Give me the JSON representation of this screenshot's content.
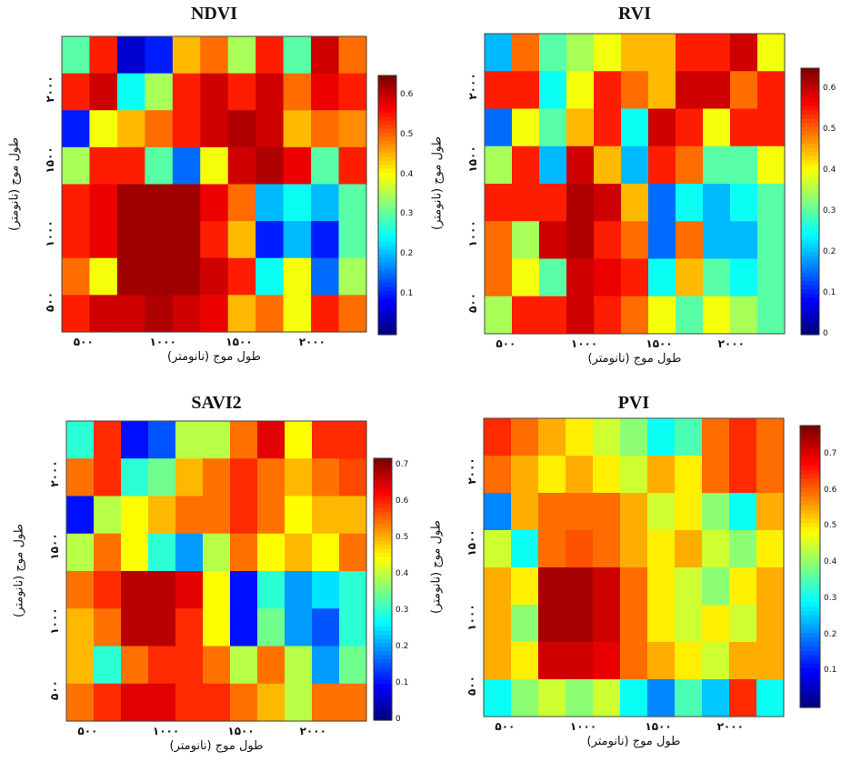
{
  "chart_data": [
    {
      "type": "heatmap",
      "title": "NDVI",
      "xlabel": "طول موج (نانومتر)",
      "ylabel": "طول موج (نانومتر)",
      "x_ticks": [
        "۵۰۰",
        "۱۰۰۰",
        "۱۵۰۰",
        "۲۰۰۰"
      ],
      "y_ticks": [
        "۵۰۰",
        "۱۰۰۰",
        "۱۵۰۰",
        "۲۰۰۰"
      ],
      "colorbar": {
        "min": 0,
        "max": 0.65,
        "ticks": [
          "0.1",
          "0.2",
          "0.3",
          "0.4",
          "0.5",
          "0.6"
        ]
      },
      "matrix": [
        [
          0.3,
          0.55,
          0.05,
          0.1,
          0.45,
          0.5,
          0.35,
          0.55,
          0.3,
          0.6,
          0.5
        ],
        [
          0.55,
          0.6,
          0.25,
          0.35,
          0.55,
          0.6,
          0.55,
          0.6,
          0.5,
          0.58,
          0.55
        ],
        [
          0.1,
          0.4,
          0.45,
          0.5,
          0.55,
          0.6,
          0.62,
          0.6,
          0.45,
          0.5,
          0.48
        ],
        [
          0.35,
          0.55,
          0.55,
          0.3,
          0.15,
          0.4,
          0.6,
          0.62,
          0.58,
          0.3,
          0.55
        ],
        [
          0.55,
          0.58,
          0.63,
          0.63,
          0.63,
          0.58,
          0.5,
          0.2,
          0.25,
          0.2,
          0.3
        ],
        [
          0.55,
          0.58,
          0.63,
          0.63,
          0.63,
          0.55,
          0.45,
          0.1,
          0.2,
          0.1,
          0.3
        ],
        [
          0.5,
          0.4,
          0.63,
          0.63,
          0.63,
          0.6,
          0.55,
          0.25,
          0.4,
          0.15,
          0.35
        ],
        [
          0.55,
          0.6,
          0.6,
          0.62,
          0.6,
          0.58,
          0.45,
          0.5,
          0.4,
          0.55,
          0.5
        ]
      ]
    },
    {
      "type": "heatmap",
      "title": "RVI",
      "xlabel": "طول موج (نانومتر)",
      "ylabel": "طول موج (نانومتر)",
      "x_ticks": [
        "۵۰۰",
        "۱۰۰۰",
        "۱۵۰۰",
        "۲۰۰۰"
      ],
      "y_ticks": [
        "۵۰۰",
        "۱۰۰۰",
        "۱۵۰۰",
        "۲۰۰۰"
      ],
      "colorbar": {
        "min": 0,
        "max": 0.65,
        "ticks": [
          "0",
          "0.1",
          "0.2",
          "0.3",
          "0.4",
          "0.5",
          "0.6"
        ]
      },
      "matrix": [
        [
          0.2,
          0.5,
          0.3,
          0.35,
          0.4,
          0.45,
          0.45,
          0.55,
          0.55,
          0.6,
          0.4
        ],
        [
          0.55,
          0.55,
          0.25,
          0.4,
          0.55,
          0.5,
          0.45,
          0.6,
          0.6,
          0.5,
          0.55
        ],
        [
          0.15,
          0.4,
          0.3,
          0.45,
          0.55,
          0.25,
          0.6,
          0.55,
          0.4,
          0.55,
          0.55
        ],
        [
          0.35,
          0.55,
          0.2,
          0.6,
          0.45,
          0.2,
          0.55,
          0.5,
          0.3,
          0.3,
          0.4
        ],
        [
          0.55,
          0.55,
          0.55,
          0.62,
          0.6,
          0.45,
          0.15,
          0.25,
          0.2,
          0.25,
          0.3
        ],
        [
          0.5,
          0.35,
          0.6,
          0.62,
          0.55,
          0.5,
          0.15,
          0.5,
          0.2,
          0.2,
          0.3
        ],
        [
          0.5,
          0.4,
          0.3,
          0.6,
          0.58,
          0.55,
          0.25,
          0.45,
          0.3,
          0.25,
          0.3
        ],
        [
          0.35,
          0.55,
          0.55,
          0.6,
          0.55,
          0.5,
          0.4,
          0.3,
          0.4,
          0.35,
          0.3
        ]
      ]
    },
    {
      "type": "heatmap",
      "title": "SAVI2",
      "xlabel": "طول موج (نانومتر)",
      "ylabel": "طول موج (نانومتر)",
      "x_ticks": [
        "۵۰۰",
        "۱۰۰۰",
        "۱۵۰۰",
        "۲۰۰۰"
      ],
      "y_ticks": [
        "۵۰۰",
        "۱۰۰۰",
        "۱۵۰۰",
        "۲۰۰۰"
      ],
      "colorbar": {
        "min": 0,
        "max": 0.72,
        "ticks": [
          "0",
          "0.1",
          "0.2",
          "0.3",
          "0.4",
          "0.5",
          "0.6",
          "0.7"
        ]
      },
      "matrix": [
        [
          0.3,
          0.6,
          0.1,
          0.15,
          0.4,
          0.4,
          0.55,
          0.65,
          0.45,
          0.6,
          0.6
        ],
        [
          0.55,
          0.6,
          0.3,
          0.35,
          0.5,
          0.55,
          0.6,
          0.55,
          0.5,
          0.55,
          0.58
        ],
        [
          0.1,
          0.4,
          0.45,
          0.5,
          0.55,
          0.55,
          0.6,
          0.55,
          0.45,
          0.5,
          0.5
        ],
        [
          0.4,
          0.55,
          0.45,
          0.3,
          0.2,
          0.4,
          0.55,
          0.45,
          0.5,
          0.45,
          0.55
        ],
        [
          0.55,
          0.6,
          0.68,
          0.68,
          0.65,
          0.45,
          0.1,
          0.3,
          0.2,
          0.25,
          0.3
        ],
        [
          0.5,
          0.55,
          0.68,
          0.68,
          0.6,
          0.45,
          0.1,
          0.35,
          0.2,
          0.15,
          0.3
        ],
        [
          0.5,
          0.3,
          0.55,
          0.6,
          0.6,
          0.55,
          0.4,
          0.55,
          0.4,
          0.2,
          0.35
        ],
        [
          0.55,
          0.6,
          0.65,
          0.65,
          0.6,
          0.6,
          0.55,
          0.5,
          0.4,
          0.55,
          0.55
        ]
      ]
    },
    {
      "type": "heatmap",
      "title": "PVI",
      "xlabel": "طول موج (نانومتر)",
      "ylabel": "طول موج (نانومتر)",
      "x_ticks": [
        "۵۰۰",
        "۱۰۰۰",
        "۱۵۰۰",
        "۲۰۰۰"
      ],
      "y_ticks": [
        "۵۰۰",
        "۱۰۰۰",
        "۱۵۰۰",
        "۲۰۰۰"
      ],
      "colorbar": {
        "min": 0,
        "max": 0.78,
        "ticks": [
          "0.1",
          "0.2",
          "0.3",
          "0.4",
          "0.5",
          "0.6",
          "0.7"
        ]
      },
      "matrix": [
        [
          0.65,
          0.6,
          0.55,
          0.5,
          0.45,
          0.4,
          0.3,
          0.35,
          0.6,
          0.65,
          0.6
        ],
        [
          0.6,
          0.55,
          0.5,
          0.55,
          0.5,
          0.45,
          0.55,
          0.5,
          0.6,
          0.65,
          0.6
        ],
        [
          0.2,
          0.55,
          0.6,
          0.6,
          0.6,
          0.55,
          0.45,
          0.5,
          0.4,
          0.3,
          0.55
        ],
        [
          0.45,
          0.3,
          0.6,
          0.62,
          0.6,
          0.55,
          0.5,
          0.55,
          0.45,
          0.4,
          0.5
        ],
        [
          0.55,
          0.5,
          0.75,
          0.75,
          0.72,
          0.6,
          0.5,
          0.45,
          0.4,
          0.5,
          0.55
        ],
        [
          0.55,
          0.4,
          0.75,
          0.75,
          0.72,
          0.6,
          0.5,
          0.45,
          0.5,
          0.45,
          0.55
        ],
        [
          0.55,
          0.5,
          0.72,
          0.72,
          0.7,
          0.6,
          0.55,
          0.5,
          0.45,
          0.55,
          0.55
        ],
        [
          0.3,
          0.4,
          0.45,
          0.4,
          0.45,
          0.3,
          0.2,
          0.35,
          0.25,
          0.65,
          0.3
        ]
      ]
    }
  ]
}
